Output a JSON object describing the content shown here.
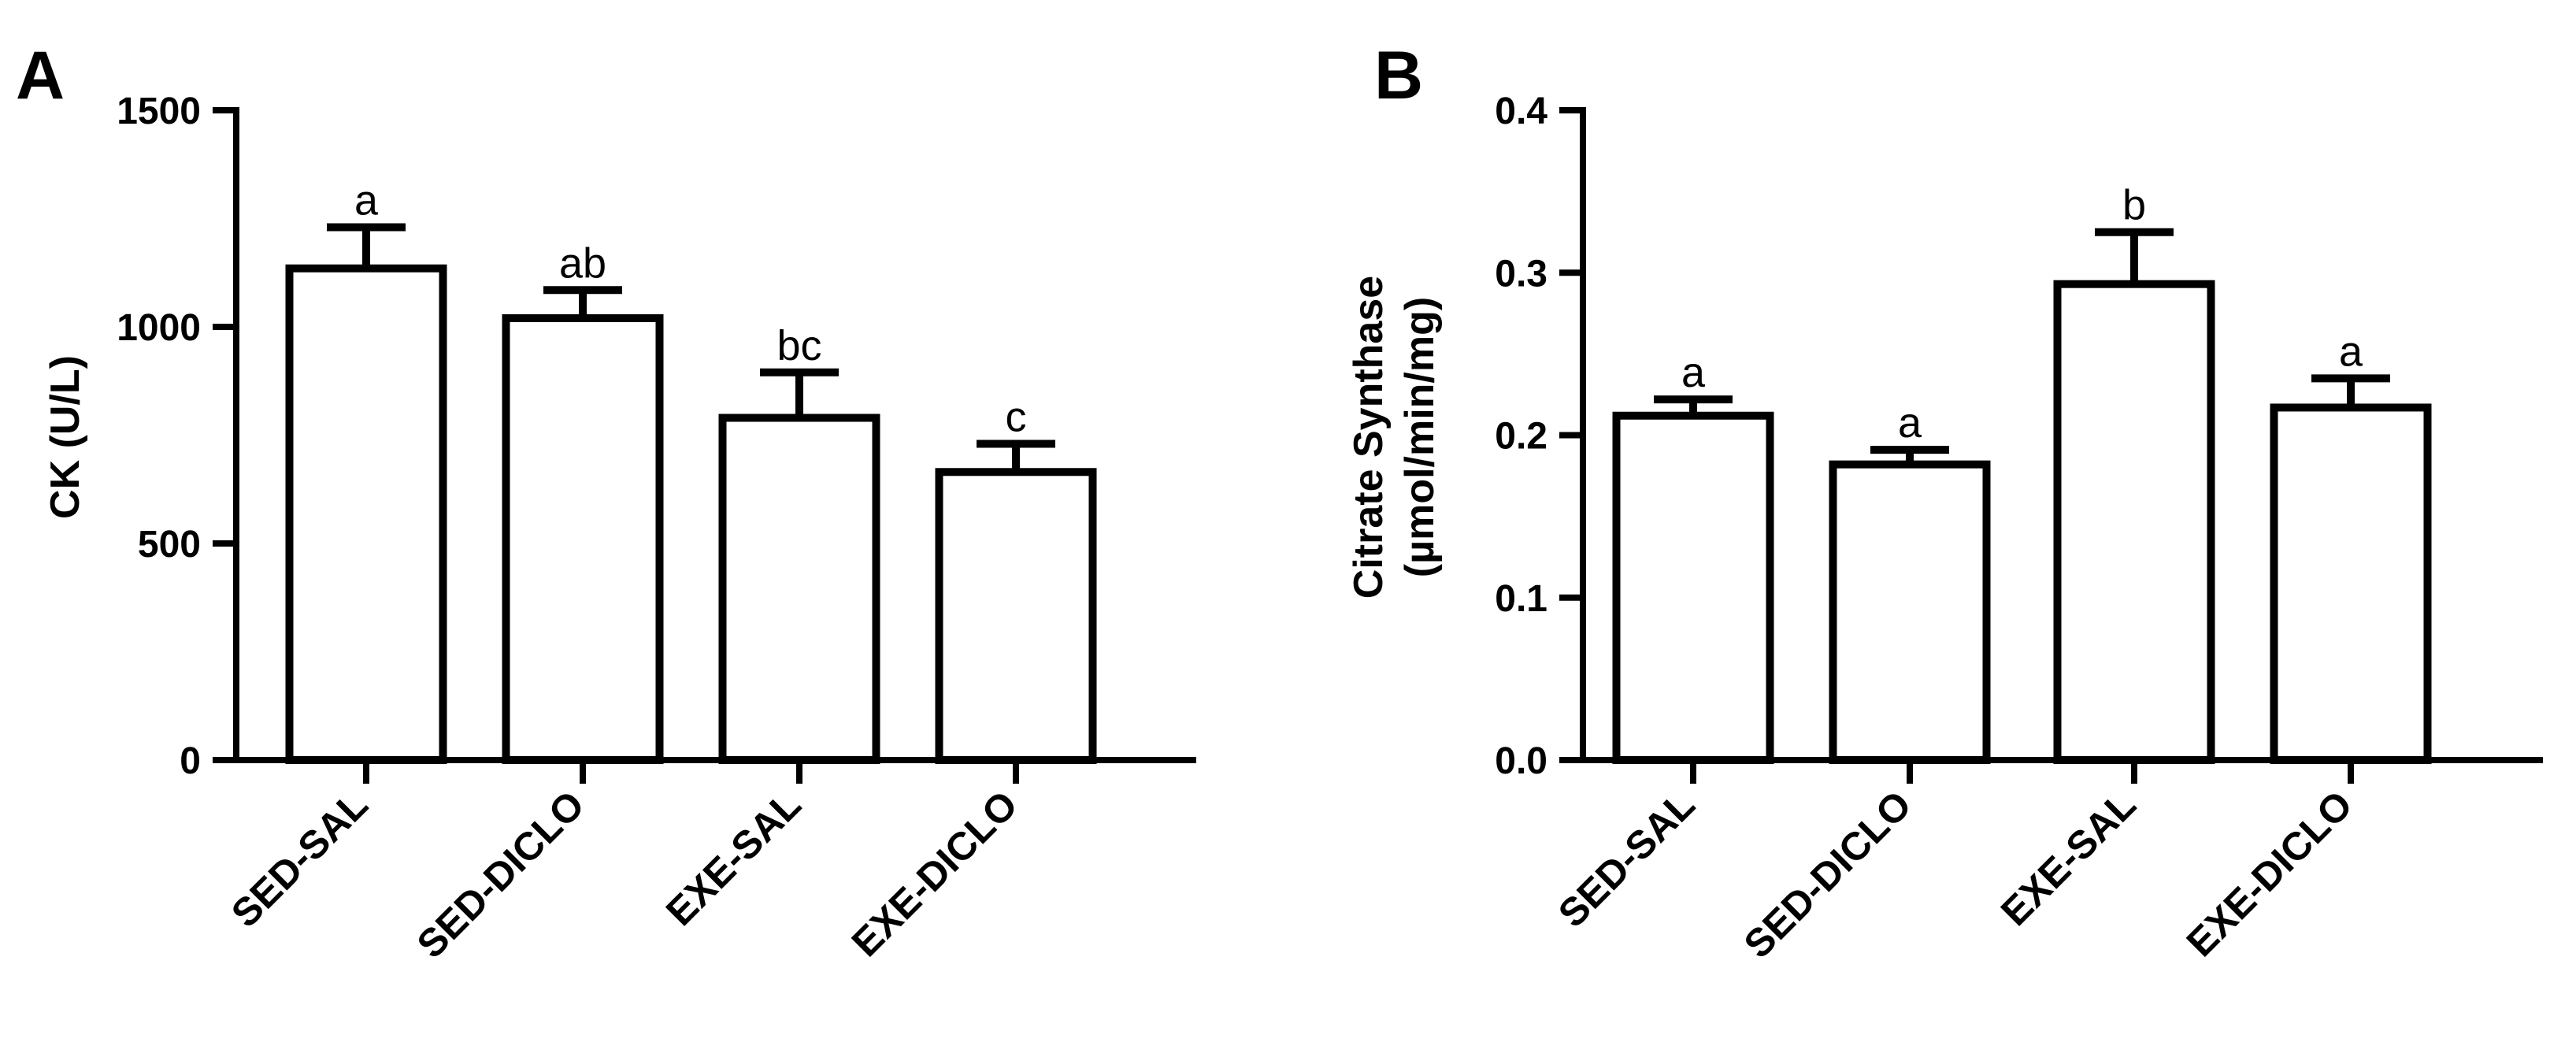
{
  "chart_data": [
    {
      "panel": "A",
      "type": "bar",
      "ylabel": "CK (U/L)",
      "ylim": [
        0,
        1500
      ],
      "yticks": [
        "0",
        "500",
        "1000",
        "1500"
      ],
      "yticks_values": [
        0,
        500,
        1000,
        1500
      ],
      "categories": [
        "SED-SAL",
        "SED-DICLO",
        "EXE-SAL",
        "EXE-DICLO"
      ],
      "values": [
        1135,
        1020,
        790,
        665
      ],
      "errors": [
        95,
        65,
        105,
        65
      ],
      "significance": [
        "a",
        "ab",
        "bc",
        "c"
      ]
    },
    {
      "panel": "B",
      "type": "bar",
      "ylabel_line1": "Citrate Synthase",
      "ylabel_line2": "(µmol/min/mg)",
      "ylim": [
        0,
        0.4
      ],
      "yticks": [
        "0.0",
        "0.1",
        "0.2",
        "0.3",
        "0.4"
      ],
      "yticks_values": [
        0,
        0.1,
        0.2,
        0.3,
        0.4
      ],
      "categories": [
        "SED-SAL",
        "SED-DICLO",
        "EXE-SAL",
        "EXE-DICLO"
      ],
      "values": [
        0.212,
        0.182,
        0.293,
        0.217
      ],
      "errors": [
        0.01,
        0.009,
        0.032,
        0.018
      ],
      "significance": [
        "a",
        "a",
        "b",
        "a"
      ]
    }
  ]
}
